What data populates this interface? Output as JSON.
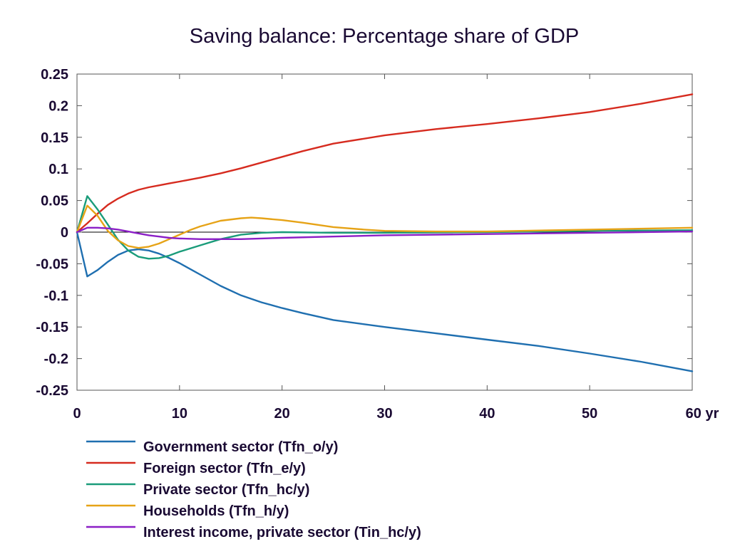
{
  "chart_data": {
    "type": "line",
    "title": "Saving balance: Percentage share of GDP",
    "xlabel": "",
    "ylabel": "",
    "x_unit": "yr",
    "xlim": [
      0,
      60
    ],
    "ylim": [
      -0.25,
      0.25
    ],
    "x_ticks": [
      0,
      10,
      20,
      30,
      40,
      50,
      60
    ],
    "x_tick_labels": [
      "0",
      "10",
      "20",
      "30",
      "40",
      "50",
      "60 yr"
    ],
    "y_ticks": [
      -0.25,
      -0.2,
      -0.15,
      -0.1,
      -0.05,
      0,
      0.05,
      0.1,
      0.15,
      0.2,
      0.25
    ],
    "y_tick_labels": [
      "-0.25",
      "-0.2",
      "-0.15",
      "-0.1",
      "-0.05",
      "0",
      "0.05",
      "0.1",
      "0.15",
      "0.2",
      "0.25"
    ],
    "grid": false,
    "zero_line": true,
    "legend_position": "bottom-left",
    "series": [
      {
        "name": "Government sector (Tfn_o/y)",
        "color": "#1f6fb0",
        "x": [
          0,
          1,
          2,
          3,
          4,
          5,
          6,
          7,
          8,
          9,
          10,
          12,
          14,
          16,
          18,
          20,
          22,
          25,
          30,
          35,
          40,
          45,
          50,
          55,
          60
        ],
        "y": [
          0,
          -0.07,
          -0.06,
          -0.047,
          -0.036,
          -0.029,
          -0.027,
          -0.029,
          -0.034,
          -0.041,
          -0.049,
          -0.067,
          -0.085,
          -0.1,
          -0.111,
          -0.12,
          -0.128,
          -0.139,
          -0.15,
          -0.16,
          -0.17,
          -0.18,
          -0.192,
          -0.205,
          -0.22
        ]
      },
      {
        "name": "Foreign sector (Tfn_e/y)",
        "color": "#d62b1f",
        "x": [
          0,
          1,
          2,
          3,
          4,
          5,
          6,
          7,
          8,
          9,
          10,
          12,
          14,
          16,
          18,
          20,
          22,
          25,
          30,
          35,
          40,
          45,
          50,
          55,
          60
        ],
        "y": [
          0,
          0.014,
          0.029,
          0.043,
          0.053,
          0.061,
          0.067,
          0.071,
          0.074,
          0.077,
          0.08,
          0.086,
          0.093,
          0.101,
          0.11,
          0.119,
          0.128,
          0.14,
          0.153,
          0.163,
          0.171,
          0.18,
          0.19,
          0.203,
          0.218
        ]
      },
      {
        "name": "Private sector (Tfn_hc/y)",
        "color": "#1a9c7a",
        "x": [
          0,
          1,
          2,
          3,
          4,
          5,
          6,
          7,
          8,
          9,
          10,
          12,
          14,
          16,
          18,
          20,
          25,
          30,
          40,
          50,
          60
        ],
        "y": [
          0,
          0.057,
          0.036,
          0.012,
          -0.012,
          -0.029,
          -0.039,
          -0.042,
          -0.041,
          -0.037,
          -0.031,
          -0.021,
          -0.011,
          -0.004,
          -0.001,
          0,
          -0.001,
          -0.001,
          0,
          0.002,
          0.003
        ]
      },
      {
        "name": "Households (Tfn_h/y)",
        "color": "#e6a317",
        "x": [
          0,
          1,
          2,
          3,
          4,
          5,
          6,
          7,
          8,
          9,
          10,
          11,
          12,
          14,
          16,
          17,
          18,
          20,
          22,
          25,
          28,
          30,
          35,
          40,
          50,
          60
        ],
        "y": [
          0,
          0.042,
          0.026,
          0.002,
          -0.013,
          -0.022,
          -0.025,
          -0.023,
          -0.018,
          -0.011,
          -0.004,
          0.003,
          0.009,
          0.018,
          0.022,
          0.023,
          0.022,
          0.019,
          0.015,
          0.008,
          0.004,
          0.002,
          0.001,
          0.001,
          0.004,
          0.007
        ]
      },
      {
        "name": "Interest income, private sector (Tin_hc/y)",
        "color": "#8b1fc6",
        "x": [
          0,
          1,
          2,
          3,
          4,
          5,
          6,
          7,
          8,
          9,
          10,
          12,
          14,
          16,
          18,
          20,
          25,
          30,
          40,
          50,
          60
        ],
        "y": [
          0,
          0.007,
          0.007,
          0.006,
          0.004,
          0.001,
          -0.002,
          -0.005,
          -0.007,
          -0.009,
          -0.01,
          -0.011,
          -0.011,
          -0.011,
          -0.01,
          -0.009,
          -0.007,
          -0.005,
          -0.003,
          -0.001,
          0.001
        ]
      }
    ]
  }
}
